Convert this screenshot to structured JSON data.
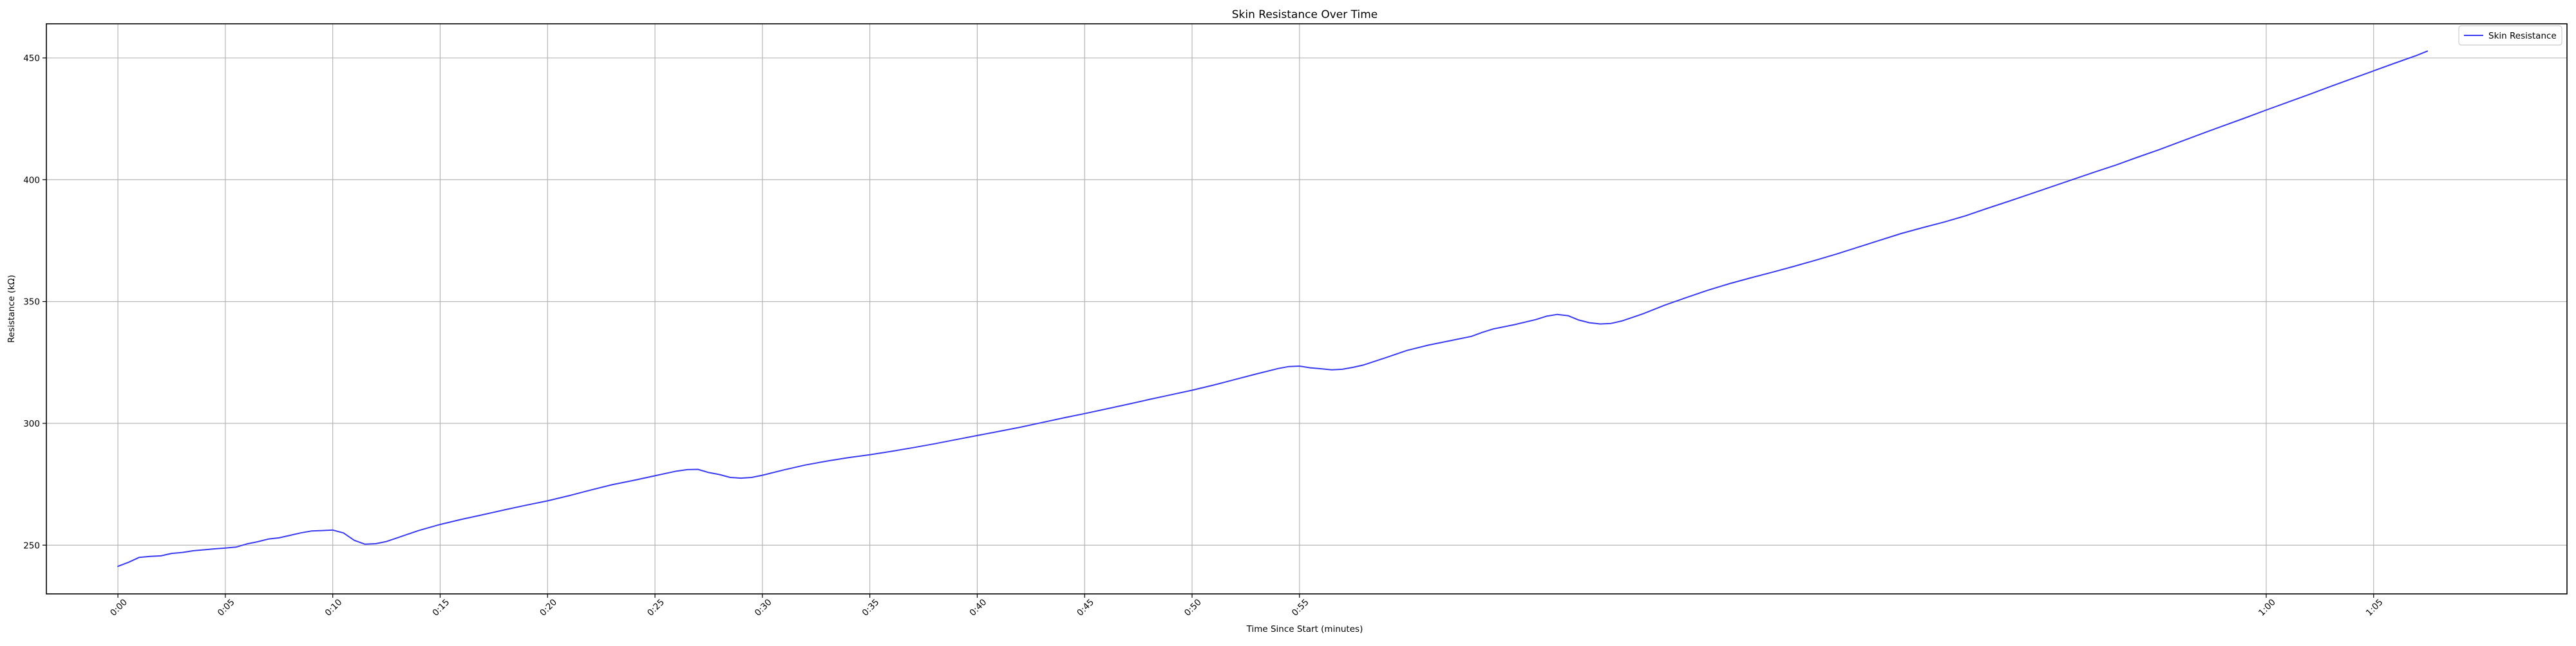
{
  "chart_data": {
    "type": "line",
    "title": "Skin Resistance Over Time",
    "xlabel": "Time Since Start (minutes)",
    "ylabel": "Resistance (kΩ)",
    "x_ticks": [
      "0:00",
      "0:05",
      "0:10",
      "0:15",
      "0:20",
      "0:25",
      "0:30",
      "0:35",
      "0:40",
      "0:45",
      "0:50",
      "0:55",
      "1:00",
      "1:05"
    ],
    "y_ticks": [
      250,
      300,
      350,
      400,
      450
    ],
    "xlim": [
      -0.0333,
      1.14
    ],
    "ylim": [
      230,
      464
    ],
    "grid": true,
    "legend": {
      "placement": "top-right",
      "entries": [
        "Skin Resistance"
      ]
    },
    "series": [
      {
        "name": "Skin Resistance",
        "color": "#3a3af0",
        "points": [
          [
            0.0,
            241.3
          ],
          [
            0.005,
            243.0
          ],
          [
            0.01,
            245.0
          ],
          [
            0.015,
            245.4
          ],
          [
            0.02,
            245.6
          ],
          [
            0.025,
            246.6
          ],
          [
            0.03,
            247.0
          ],
          [
            0.035,
            247.7
          ],
          [
            0.04,
            248.1
          ],
          [
            0.045,
            248.5
          ],
          [
            0.05,
            248.8
          ],
          [
            0.055,
            249.2
          ],
          [
            0.06,
            250.5
          ],
          [
            0.065,
            251.4
          ],
          [
            0.07,
            252.5
          ],
          [
            0.075,
            253.0
          ],
          [
            0.08,
            254.0
          ],
          [
            0.085,
            255.0
          ],
          [
            0.09,
            255.8
          ],
          [
            0.095,
            256.0
          ],
          [
            0.1,
            256.2
          ],
          [
            0.105,
            255.0
          ],
          [
            0.11,
            252.0
          ],
          [
            0.115,
            250.4
          ],
          [
            0.12,
            250.6
          ],
          [
            0.125,
            251.5
          ],
          [
            0.13,
            253.0
          ],
          [
            0.135,
            254.5
          ],
          [
            0.14,
            256.0
          ],
          [
            0.15,
            258.5
          ],
          [
            0.16,
            260.6
          ],
          [
            0.17,
            262.5
          ],
          [
            0.18,
            264.5
          ],
          [
            0.19,
            266.4
          ],
          [
            0.2,
            268.2
          ],
          [
            0.21,
            270.3
          ],
          [
            0.22,
            272.6
          ],
          [
            0.23,
            274.8
          ],
          [
            0.24,
            276.6
          ],
          [
            0.25,
            278.5
          ],
          [
            0.26,
            280.4
          ],
          [
            0.265,
            281.0
          ],
          [
            0.27,
            281.1
          ],
          [
            0.275,
            279.8
          ],
          [
            0.28,
            279.0
          ],
          [
            0.285,
            277.8
          ],
          [
            0.29,
            277.5
          ],
          [
            0.295,
            277.8
          ],
          [
            0.3,
            278.7
          ],
          [
            0.31,
            280.9
          ],
          [
            0.32,
            282.9
          ],
          [
            0.33,
            284.5
          ],
          [
            0.34,
            285.9
          ],
          [
            0.35,
            287.1
          ],
          [
            0.36,
            288.5
          ],
          [
            0.37,
            290.0
          ],
          [
            0.38,
            291.6
          ],
          [
            0.39,
            293.3
          ],
          [
            0.4,
            295.0
          ],
          [
            0.41,
            296.7
          ],
          [
            0.42,
            298.4
          ],
          [
            0.43,
            300.3
          ],
          [
            0.44,
            302.2
          ],
          [
            0.45,
            304.0
          ],
          [
            0.46,
            305.9
          ],
          [
            0.47,
            307.8
          ],
          [
            0.48,
            309.8
          ],
          [
            0.49,
            311.7
          ],
          [
            0.5,
            313.6
          ],
          [
            0.51,
            315.7
          ],
          [
            0.52,
            318.0
          ],
          [
            0.53,
            320.3
          ],
          [
            0.54,
            322.5
          ],
          [
            0.545,
            323.3
          ],
          [
            0.55,
            323.5
          ],
          [
            0.555,
            322.8
          ],
          [
            0.56,
            322.4
          ],
          [
            0.565,
            322.0
          ],
          [
            0.57,
            322.2
          ],
          [
            0.575,
            323.0
          ],
          [
            0.58,
            324.0
          ],
          [
            0.59,
            326.9
          ],
          [
            0.6,
            329.9
          ],
          [
            0.61,
            332.1
          ],
          [
            0.62,
            333.9
          ],
          [
            0.63,
            335.7
          ],
          [
            0.635,
            337.3
          ],
          [
            0.64,
            338.7
          ],
          [
            0.65,
            340.5
          ],
          [
            0.66,
            342.6
          ],
          [
            0.665,
            344.0
          ],
          [
            0.67,
            344.7
          ],
          [
            0.675,
            344.2
          ],
          [
            0.68,
            342.4
          ],
          [
            0.685,
            341.3
          ],
          [
            0.69,
            340.8
          ],
          [
            0.695,
            341.0
          ],
          [
            0.7,
            342.0
          ],
          [
            0.71,
            345.0
          ],
          [
            0.72,
            348.5
          ],
          [
            0.73,
            351.6
          ],
          [
            0.74,
            354.6
          ],
          [
            0.75,
            357.3
          ],
          [
            0.76,
            359.7
          ],
          [
            0.77,
            362.0
          ],
          [
            0.78,
            364.4
          ],
          [
            0.79,
            366.9
          ],
          [
            0.8,
            369.5
          ],
          [
            0.81,
            372.3
          ],
          [
            0.82,
            375.1
          ],
          [
            0.83,
            377.9
          ],
          [
            0.84,
            380.3
          ],
          [
            0.85,
            382.6
          ],
          [
            0.86,
            385.2
          ],
          [
            0.87,
            388.2
          ],
          [
            0.88,
            391.1
          ],
          [
            0.89,
            394.1
          ],
          [
            0.9,
            397.1
          ],
          [
            0.91,
            400.1
          ],
          [
            0.92,
            403.1
          ],
          [
            0.93,
            406.0
          ],
          [
            0.94,
            409.2
          ],
          [
            0.95,
            412.3
          ],
          [
            0.96,
            415.6
          ],
          [
            0.97,
            418.9
          ],
          [
            0.98,
            422.1
          ],
          [
            0.99,
            425.3
          ],
          [
            1.0,
            428.6
          ],
          [
            1.01,
            431.8
          ],
          [
            1.02,
            435.0
          ],
          [
            1.03,
            438.3
          ],
          [
            1.04,
            441.5
          ],
          [
            1.05,
            444.7
          ],
          [
            1.06,
            447.9
          ],
          [
            1.07,
            451.0
          ],
          [
            1.075,
            452.8
          ]
        ]
      }
    ]
  }
}
